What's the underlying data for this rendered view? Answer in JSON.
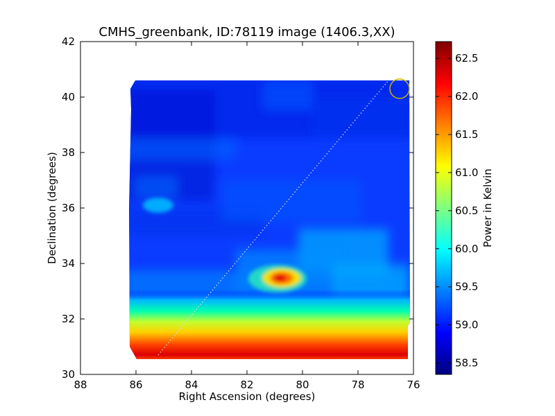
{
  "chart_data": {
    "type": "heatmap",
    "title": "CMHS_greenbank, ID:78119 image (1406.3,XX)",
    "xlabel": "Right Ascension (degrees)",
    "ylabel": "Declination (degrees)",
    "xlim": [
      88,
      76
    ],
    "ylim": [
      30,
      42
    ],
    "xticks": [
      88,
      86,
      84,
      82,
      80,
      78,
      76
    ],
    "yticks": [
      30,
      32,
      34,
      36,
      38,
      40,
      42
    ],
    "grid": false,
    "colormap": "jet",
    "colorbar": {
      "label": "Power in Kelvin",
      "range": [
        58.35,
        62.72
      ],
      "ticks": [
        "58.5",
        "59.0",
        "59.5",
        "60.0",
        "60.5",
        "61.0",
        "61.5",
        "62.0",
        "62.5"
      ]
    },
    "map_extent": {
      "ra": [
        86.2,
        76.1
      ],
      "dec": [
        30.55,
        40.65
      ]
    },
    "map_background_value": 59.05,
    "map_features": [
      {
        "feature": "bright-hotspot",
        "ra": 80.75,
        "dec": 33.45,
        "peak_value": 62.0
      },
      {
        "feature": "warm-diffuse-region",
        "ra": 80.0,
        "dec": 33.7,
        "value": 59.7
      },
      {
        "feature": "warm-patch",
        "ra": 85.5,
        "dec": 36.1,
        "value": 59.55
      },
      {
        "feature": "warm-band-bottom",
        "dec_range": [
          30.55,
          32.2
        ],
        "peak_value": 62.4
      },
      {
        "feature": "cool-region",
        "ra": 84.5,
        "dec": 39.5,
        "value": 58.7
      }
    ],
    "scan_path": {
      "from": [
        85.2,
        30.7
      ],
      "to": [
        76.9,
        40.6
      ],
      "style": "dotted",
      "color": "#dddddd"
    },
    "beam_marker": {
      "ra": 76.5,
      "dec": 40.3,
      "color": "#c8b400"
    }
  }
}
